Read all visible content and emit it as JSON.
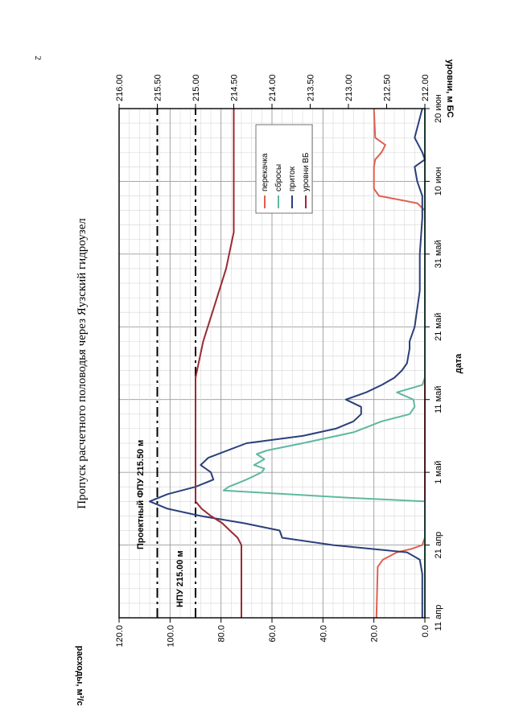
{
  "page_number": "2",
  "chart_data": {
    "type": "line",
    "title": "Пропуск расчетного половодья через Яузский гидроузел",
    "xlabel": "дата",
    "ylabel_left": "расходы, м³/с",
    "ylabel_right": "уровни, м БС",
    "x_ticks": [
      "11 апр",
      "21 апр",
      "1 май",
      "11 май",
      "21 май",
      "31 май",
      "10 июн",
      "20 июн"
    ],
    "x_range_days": [
      0,
      70
    ],
    "y_left_ticks": [
      "0.0",
      "20.0",
      "40.0",
      "60.0",
      "80.0",
      "100.0",
      "120.0"
    ],
    "y_left_range": [
      0,
      120
    ],
    "y_right_ticks": [
      "212.00",
      "212.50",
      "213.00",
      "213.50",
      "214.00",
      "214.50",
      "215.00",
      "215.50",
      "216.00"
    ],
    "y_right_range": [
      212,
      216
    ],
    "grid": true,
    "legend_position": "top-right",
    "annotations": [
      {
        "text": "Проектный ФПУ 215.50 м",
        "level": 215.5
      },
      {
        "text": "НПУ 215.00 м",
        "level": 215.0
      }
    ],
    "series": [
      {
        "name": "перекачка",
        "color": "#e0604f",
        "axis": "left",
        "points": [
          [
            0,
            19
          ],
          [
            7,
            18.5
          ],
          [
            8,
            16.5
          ],
          [
            9,
            11
          ],
          [
            9.5,
            5
          ],
          [
            10,
            1
          ],
          [
            11,
            0
          ],
          [
            56,
            0
          ],
          [
            57,
            3
          ],
          [
            58,
            18
          ],
          [
            59,
            20
          ],
          [
            62,
            20
          ],
          [
            63,
            19.5
          ],
          [
            64,
            17
          ],
          [
            65,
            15.5
          ],
          [
            66,
            19.5
          ],
          [
            70,
            20
          ]
        ]
      },
      {
        "name": "сбросы",
        "color": "#5fb8a0",
        "axis": "left",
        "points": [
          [
            0,
            0
          ],
          [
            16,
            0
          ],
          [
            16.5,
            30
          ],
          [
            17.5,
            79
          ],
          [
            18,
            77
          ],
          [
            19,
            70
          ],
          [
            20,
            64
          ],
          [
            20.5,
            63
          ],
          [
            21,
            67
          ],
          [
            21.8,
            63
          ],
          [
            22.5,
            66
          ],
          [
            23,
            62
          ],
          [
            24,
            48
          ],
          [
            25.5,
            28
          ],
          [
            27,
            17
          ],
          [
            28,
            6
          ],
          [
            29,
            4
          ],
          [
            30,
            4.5
          ],
          [
            31,
            11
          ],
          [
            32,
            1
          ],
          [
            33,
            0
          ],
          [
            70,
            0
          ]
        ]
      },
      {
        "name": "приток",
        "color": "#2b3f7a",
        "axis": "left",
        "points": [
          [
            0,
            1
          ],
          [
            6,
            1
          ],
          [
            8,
            2
          ],
          [
            9,
            7
          ],
          [
            10,
            36
          ],
          [
            11,
            56
          ],
          [
            12,
            57
          ],
          [
            13,
            71
          ],
          [
            14,
            88
          ],
          [
            15,
            101
          ],
          [
            16,
            108
          ],
          [
            17,
            101
          ],
          [
            18,
            90
          ],
          [
            19,
            83
          ],
          [
            20,
            84
          ],
          [
            21,
            88
          ],
          [
            22,
            85
          ],
          [
            24,
            70
          ],
          [
            25,
            48
          ],
          [
            26,
            35
          ],
          [
            27,
            28
          ],
          [
            28,
            25
          ],
          [
            29,
            25
          ],
          [
            30,
            31
          ],
          [
            31,
            23
          ],
          [
            32,
            17
          ],
          [
            33,
            12
          ],
          [
            34,
            9
          ],
          [
            35,
            7
          ],
          [
            37,
            6
          ],
          [
            38,
            6
          ],
          [
            39,
            5
          ],
          [
            40,
            4
          ],
          [
            45,
            2
          ],
          [
            50,
            2
          ],
          [
            55,
            1
          ],
          [
            58,
            1
          ],
          [
            60,
            3
          ],
          [
            62,
            4
          ],
          [
            63,
            0
          ],
          [
            64,
            1
          ],
          [
            66,
            4
          ],
          [
            70,
            1
          ]
        ]
      },
      {
        "name": "уровни ВБ",
        "color": "#9b2a33",
        "axis": "right",
        "points": [
          [
            0,
            214.4
          ],
          [
            10,
            214.4
          ],
          [
            11,
            214.45
          ],
          [
            12,
            214.55
          ],
          [
            13,
            214.65
          ],
          [
            14,
            214.8
          ],
          [
            15,
            214.92
          ],
          [
            16,
            215.0
          ],
          [
            33,
            215.0
          ],
          [
            38,
            214.9
          ],
          [
            43,
            214.75
          ],
          [
            48,
            214.6
          ],
          [
            53,
            214.5
          ],
          [
            70,
            214.5
          ]
        ]
      }
    ]
  }
}
